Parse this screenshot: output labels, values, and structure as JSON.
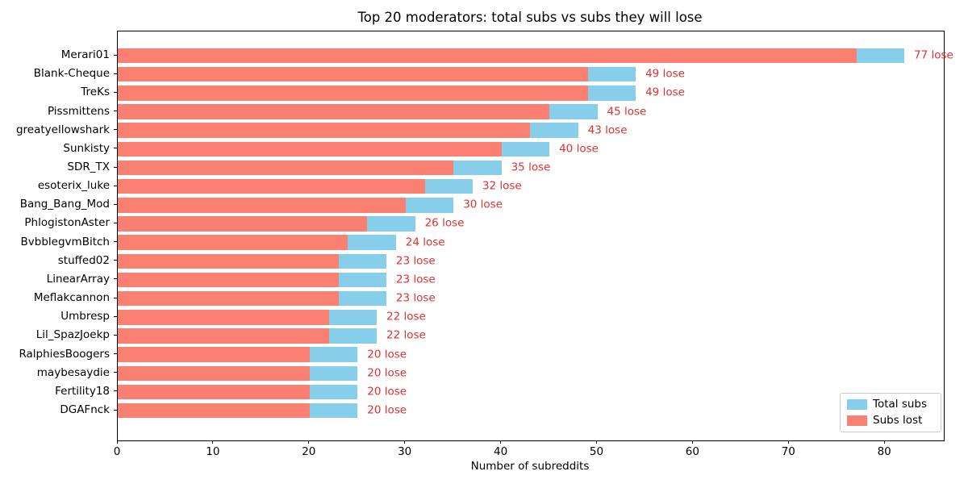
{
  "chart_data": {
    "type": "bar",
    "orientation": "horizontal",
    "title": "Top 20 moderators: total subs vs subs they will lose",
    "xlabel": "Number of subreddits",
    "ylabel": "",
    "xlim": [
      0,
      86
    ],
    "xticks": [
      0,
      10,
      20,
      30,
      40,
      50,
      60,
      70,
      80
    ],
    "grid": false,
    "categories": [
      "Merari01",
      "Blank-Cheque",
      "TreKs",
      "Pissmittens",
      "greatyellowshark",
      "Sunkisty",
      "SDR_TX",
      "esoterix_luke",
      "Bang_Bang_Mod",
      "PhlogistonAster",
      "BvbblegvmBitch",
      "stuffed02",
      "LinearArray",
      "Meflakcannon",
      "Umbresp",
      "Lil_SpazJoekp",
      "RalphiesBoogers",
      "maybesaydie",
      "Fertility18",
      "DGAFnck"
    ],
    "series": [
      {
        "name": "Total subs",
        "color": "#87CEEB",
        "values": [
          82,
          54,
          54,
          50,
          48,
          45,
          40,
          37,
          35,
          31,
          29,
          28,
          28,
          28,
          27,
          27,
          25,
          25,
          25,
          25
        ]
      },
      {
        "name": "Subs lost",
        "color": "#FA8072",
        "values": [
          77,
          49,
          49,
          45,
          43,
          40,
          35,
          32,
          30,
          26,
          24,
          23,
          23,
          23,
          22,
          22,
          20,
          20,
          20,
          20
        ]
      }
    ],
    "annotations": [
      "77 lose",
      "49 lose",
      "49 lose",
      "45 lose",
      "43 lose",
      "40 lose",
      "35 lose",
      "32 lose",
      "30 lose",
      "26 lose",
      "24 lose",
      "23 lose",
      "23 lose",
      "23 lose",
      "22 lose",
      "22 lose",
      "20 lose",
      "20 lose",
      "20 lose",
      "20 lose"
    ],
    "annotation_color": "#e03131",
    "legend": {
      "position": "lower right",
      "entries": [
        {
          "label": "Total subs",
          "color": "#87CEEB"
        },
        {
          "label": "Subs lost",
          "color": "#FA8072"
        }
      ]
    }
  }
}
